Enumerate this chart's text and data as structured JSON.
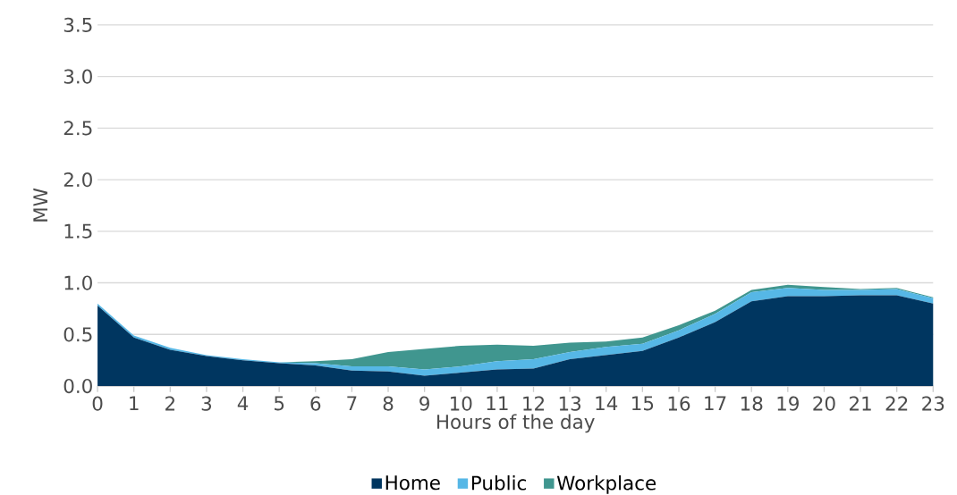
{
  "chart_data": {
    "type": "area",
    "stacked": true,
    "xlabel": "Hours of the day",
    "ylabel": "MW",
    "x": [
      0,
      1,
      2,
      3,
      4,
      5,
      6,
      7,
      8,
      9,
      10,
      11,
      12,
      13,
      14,
      15,
      16,
      17,
      18,
      19,
      20,
      21,
      22,
      23
    ],
    "xlim": [
      0,
      23
    ],
    "xticks": [
      0,
      1,
      2,
      3,
      4,
      5,
      6,
      7,
      8,
      9,
      10,
      11,
      12,
      13,
      14,
      15,
      16,
      17,
      18,
      19,
      20,
      21,
      22,
      23
    ],
    "ylim": [
      0,
      3.5
    ],
    "yticks": [
      {
        "value": 0,
        "label": "0.0"
      },
      {
        "value": 0.5,
        "label": "0.5"
      },
      {
        "value": 1,
        "label": "1.0"
      },
      {
        "value": 1.5,
        "label": "1.5"
      },
      {
        "value": 2,
        "label": "2.0"
      },
      {
        "value": 2.5,
        "label": "2.5"
      },
      {
        "value": 3,
        "label": "3.0"
      },
      {
        "value": 3.5,
        "label": "3.5"
      }
    ],
    "grid": "y",
    "legend": "bottom",
    "series": [
      {
        "name": "Home",
        "color": "#003660",
        "values": [
          0.78,
          0.47,
          0.35,
          0.29,
          0.25,
          0.22,
          0.2,
          0.15,
          0.14,
          0.1,
          0.13,
          0.16,
          0.17,
          0.26,
          0.3,
          0.34,
          0.47,
          0.62,
          0.82,
          0.87,
          0.87,
          0.88,
          0.88,
          0.8
        ]
      },
      {
        "name": "Public",
        "color": "#56b7e6",
        "values": [
          0.02,
          0.02,
          0.02,
          0.01,
          0.01,
          0.01,
          0.02,
          0.04,
          0.05,
          0.06,
          0.06,
          0.08,
          0.09,
          0.07,
          0.08,
          0.07,
          0.07,
          0.08,
          0.09,
          0.08,
          0.06,
          0.05,
          0.06,
          0.05
        ]
      },
      {
        "name": "Workplace",
        "color": "#40968f",
        "values": [
          0,
          0,
          0,
          0,
          0,
          0,
          0.02,
          0.07,
          0.14,
          0.2,
          0.2,
          0.16,
          0.13,
          0.09,
          0.05,
          0.06,
          0.05,
          0.03,
          0.02,
          0.03,
          0.03,
          0.01,
          0.01,
          0.01
        ]
      }
    ]
  }
}
